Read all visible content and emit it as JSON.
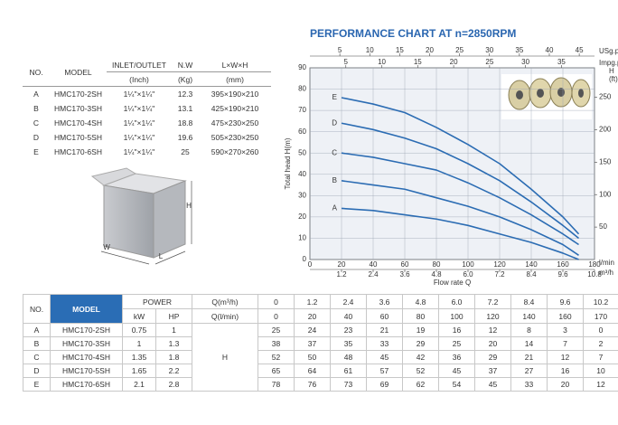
{
  "spec_table": {
    "header": [
      [
        "NO.",
        "MODEL",
        "INLET/OUTLET",
        "N.W",
        "L×W×H"
      ],
      [
        "(Inch)",
        "(Kg)",
        "(mm)"
      ]
    ],
    "rows": [
      [
        "A",
        "HMC170-2SH",
        "1¼\"×1¼\"",
        "12.3",
        "395×190×210"
      ],
      [
        "B",
        "HMC170-3SH",
        "1¼\"×1¼\"",
        "13.1",
        "425×190×210"
      ],
      [
        "C",
        "HMC170-4SH",
        "1¼\"×1¼\"",
        "18.8",
        "475×230×250"
      ],
      [
        "D",
        "HMC170-5SH",
        "1¼\"×1¼\"",
        "19.6",
        "505×230×250"
      ],
      [
        "E",
        "HMC170-6SH",
        "1¼\"×1¼\"",
        "25",
        "590×270×260"
      ]
    ]
  },
  "box": {
    "labels": [
      "H",
      "W",
      "L"
    ]
  },
  "chart_data": {
    "type": "line",
    "title": "PERFORMANCE CHART AT n=2850RPM",
    "y_label": "Total head H(m)",
    "x_label": "Flow rate Q",
    "x_unit": "l/min",
    "x": [
      20,
      40,
      60,
      80,
      100,
      120,
      140,
      160,
      170
    ],
    "series": [
      {
        "name": "A",
        "color": "#2b6cb3",
        "values": [
          24,
          23,
          21,
          19,
          16,
          12,
          8,
          3,
          0
        ]
      },
      {
        "name": "B",
        "color": "#2b6cb3",
        "values": [
          37,
          35,
          33,
          29,
          25,
          20,
          14,
          7,
          2
        ]
      },
      {
        "name": "C",
        "color": "#2b6cb3",
        "values": [
          50,
          48,
          45,
          42,
          36,
          29,
          21,
          12,
          7
        ]
      },
      {
        "name": "D",
        "color": "#2b6cb3",
        "values": [
          64,
          61,
          57,
          52,
          45,
          37,
          27,
          16,
          10
        ]
      },
      {
        "name": "E",
        "color": "#2b6cb3",
        "values": [
          76,
          73,
          69,
          62,
          54,
          45,
          33,
          20,
          12
        ]
      }
    ],
    "xlim": [
      0,
      180
    ],
    "xticks": [
      0,
      20,
      40,
      60,
      80,
      100,
      120,
      140,
      160,
      180
    ],
    "ylim": [
      0,
      90
    ],
    "yticks": [
      0,
      10,
      20,
      30,
      40,
      50,
      60,
      70,
      80,
      90
    ],
    "grid": true,
    "x2": {
      "unit": "m³/h",
      "lim": [
        0,
        10.8
      ],
      "ticks": [
        1.2,
        2.4,
        3.6,
        4.8,
        {
          "value": 6,
          "label": "6.0"
        },
        7.2,
        8.4,
        9.6,
        10.8
      ]
    },
    "top_axes": [
      {
        "unit": "USg.p.m",
        "lim": [
          0,
          47.55
        ],
        "ticks": [
          5,
          10,
          15,
          20,
          25,
          30,
          35,
          40,
          45
        ]
      },
      {
        "unit": "Impg.p.m",
        "lim": [
          0,
          39.6
        ],
        "ticks": [
          5,
          10,
          15,
          20,
          25,
          30,
          35
        ]
      }
    ],
    "y2_label": [
      "H",
      "(ft)"
    ],
    "y2lim": [
      0,
      295.3
    ],
    "y2ticks": [
      50,
      100,
      150,
      200,
      250
    ]
  },
  "perf_table": {
    "header": [
      [
        "NO.",
        "MODEL",
        "POWER",
        "Q(m³/h)",
        "0",
        "1.2",
        "2.4",
        "3.6",
        "4.8",
        "6.0",
        "7.2",
        "8.4",
        "9.6",
        "10.2"
      ],
      [
        "kW",
        "HP",
        "Q(l/min)",
        "0",
        "20",
        "40",
        "60",
        "80",
        "100",
        "120",
        "140",
        "160",
        "170"
      ]
    ],
    "h_label": "H",
    "rows": [
      [
        "A",
        "HMC170-2SH",
        "0.75",
        "1",
        "25",
        "24",
        "23",
        "21",
        "19",
        "16",
        "12",
        "8",
        "3",
        "0"
      ],
      [
        "B",
        "HMC170-3SH",
        "1",
        "1.3",
        "38",
        "37",
        "35",
        "33",
        "29",
        "25",
        "20",
        "14",
        "7",
        "2"
      ],
      [
        "C",
        "HMC170-4SH",
        "1.35",
        "1.8",
        "52",
        "50",
        "48",
        "45",
        "42",
        "36",
        "29",
        "21",
        "12",
        "7"
      ],
      [
        "D",
        "HMC170-5SH",
        "1.65",
        "2.2",
        "65",
        "64",
        "61",
        "57",
        "52",
        "45",
        "37",
        "27",
        "16",
        "10"
      ],
      [
        "E",
        "HMC170-6SH",
        "2.1",
        "2.8",
        "78",
        "76",
        "73",
        "69",
        "62",
        "54",
        "45",
        "33",
        "20",
        "12"
      ]
    ]
  }
}
